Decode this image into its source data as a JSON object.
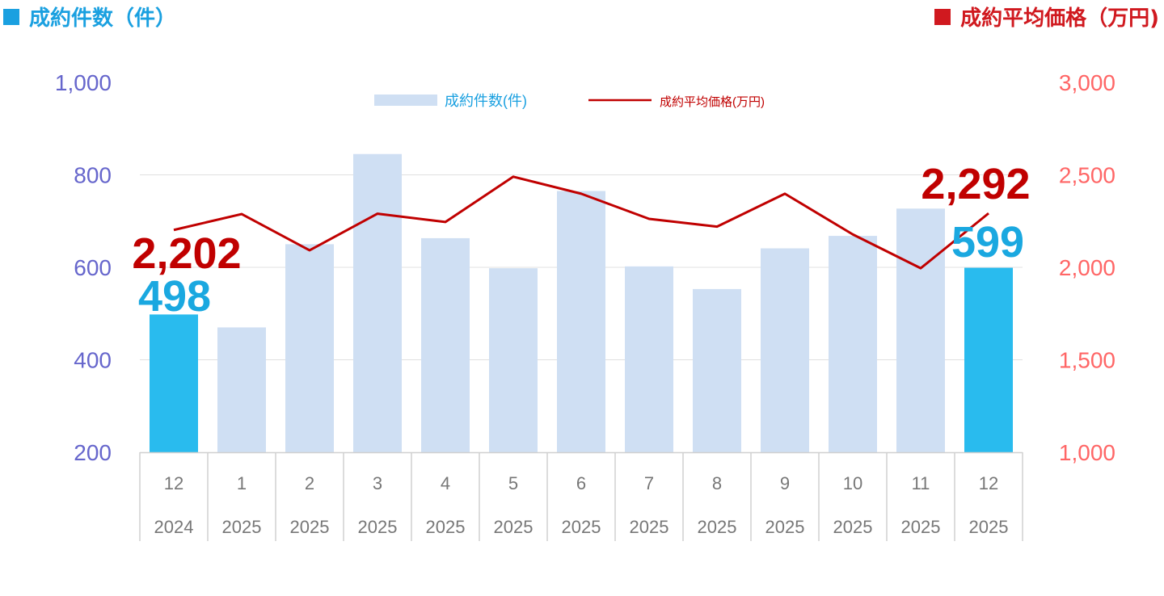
{
  "header": {
    "left_title": "成約件数（件）",
    "right_title": "成約平均価格（万円)",
    "left_color": "#1aa0e0",
    "right_color": "#d0191f"
  },
  "chart_data": {
    "type": "bar+line",
    "categories": [
      "12",
      "1",
      "2",
      "3",
      "4",
      "5",
      "6",
      "7",
      "8",
      "9",
      "10",
      "11",
      "12"
    ],
    "category_years": [
      "2024",
      "2025",
      "2025",
      "2025",
      "2025",
      "2025",
      "2025",
      "2025",
      "2025",
      "2025",
      "2025",
      "2025",
      "2025"
    ],
    "series": [
      {
        "name": "成約件数(件)",
        "type": "bar",
        "axis": "left",
        "values": [
          498,
          470,
          650,
          845,
          663,
          598,
          765,
          602,
          553,
          641,
          668,
          727,
          599
        ],
        "color": "#cfdff3",
        "highlight_color": "#29bbee",
        "highlight_indices": [
          0,
          12
        ]
      },
      {
        "name": "成約平均価格(万円)",
        "type": "line",
        "axis": "right",
        "values": [
          2202,
          2288,
          2092,
          2290,
          2245,
          2490,
          2398,
          2262,
          2220,
          2398,
          2178,
          1995,
          2292
        ],
        "color": "#c00000"
      }
    ],
    "left_axis": {
      "ylim": [
        200,
        1000
      ],
      "ticks": [
        "200",
        "400",
        "600",
        "800",
        "1,000"
      ],
      "color": "#6666cc"
    },
    "right_axis": {
      "ylim": [
        1000,
        3000
      ],
      "ticks": [
        "1,000",
        "1,500",
        "2,000",
        "2,500",
        "3,000"
      ],
      "color": "#ff6666"
    },
    "annotations": {
      "first_count": "498",
      "last_count": "599",
      "first_price": "2,202",
      "last_price": "2,292"
    },
    "grid": true,
    "legend_position": "top-center"
  }
}
